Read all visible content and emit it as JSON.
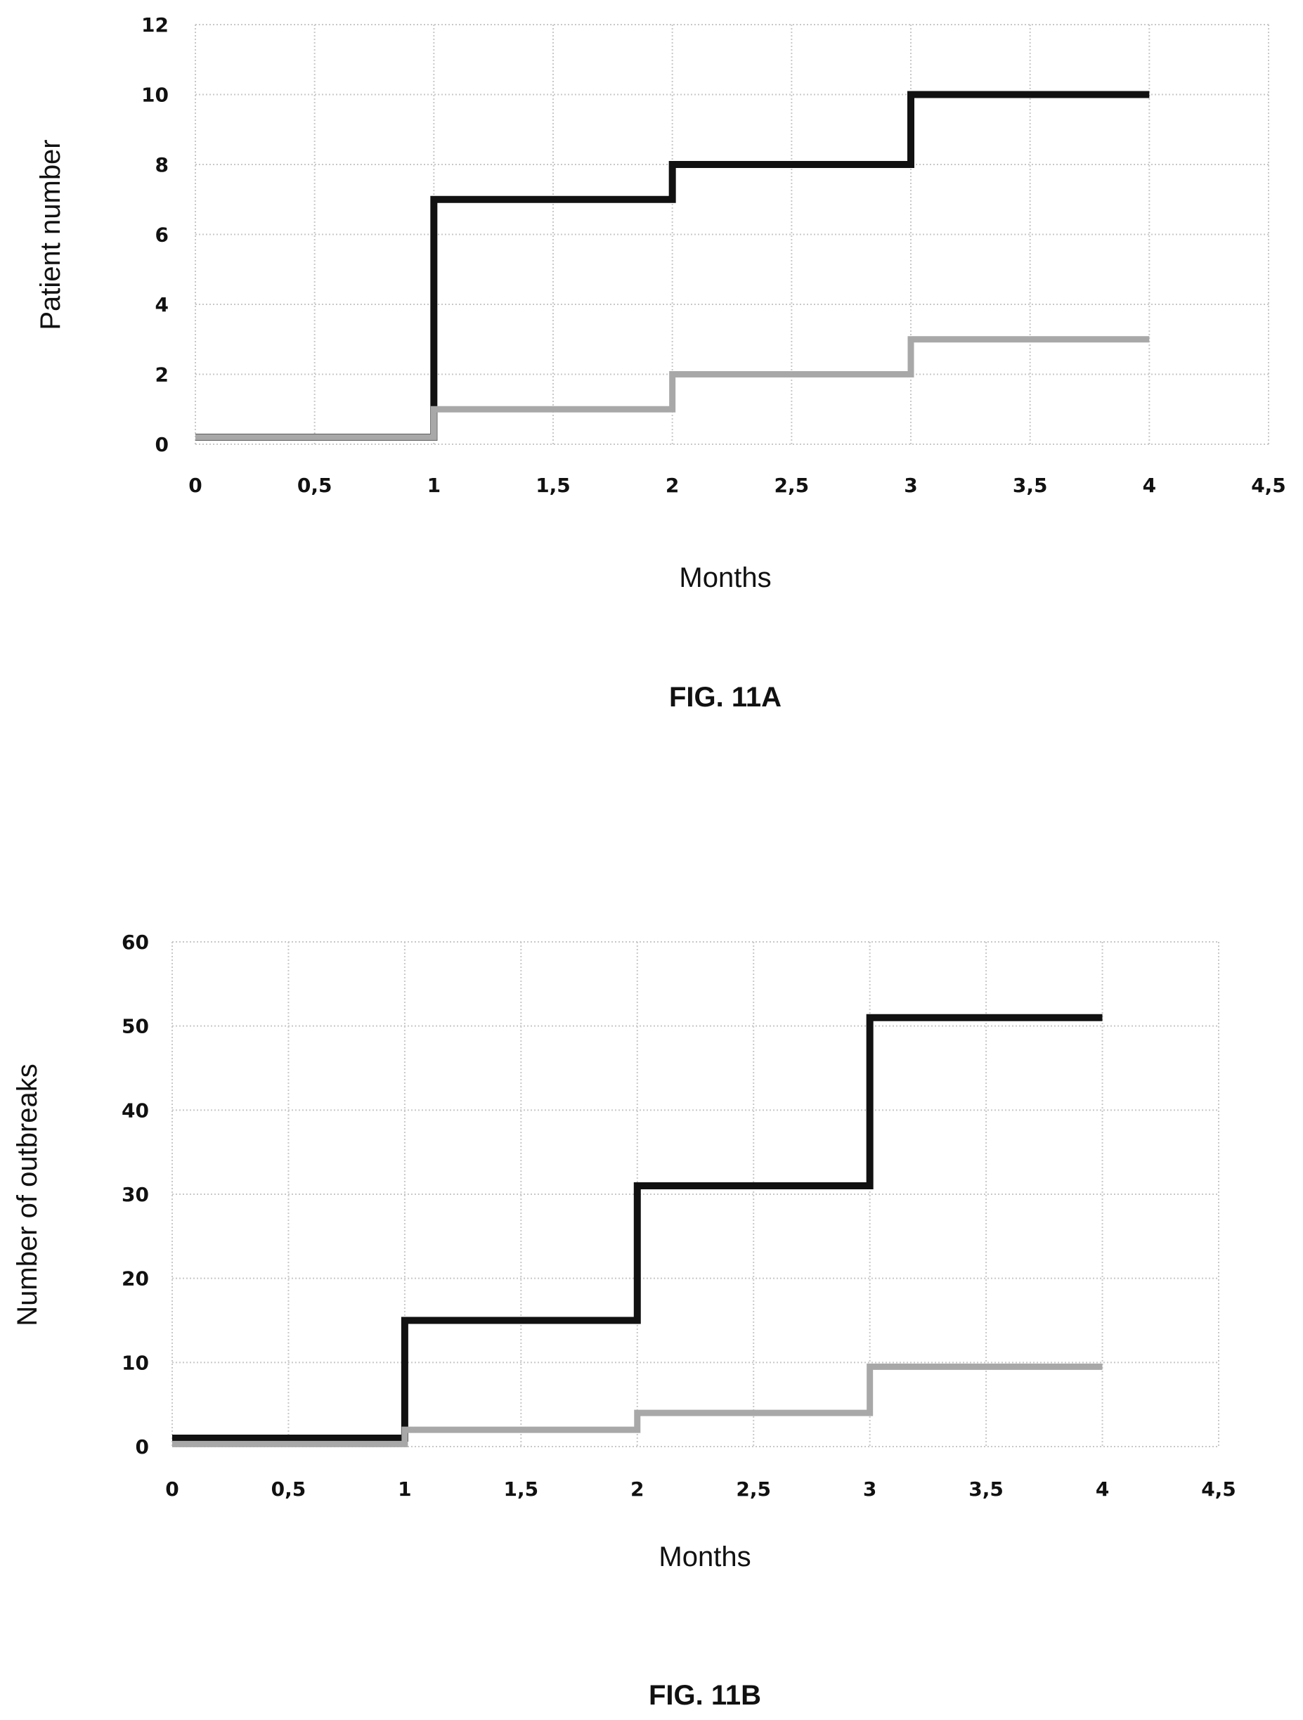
{
  "chart_data": [
    {
      "type": "line",
      "step": true,
      "xlabel": "Months",
      "ylabel": "Patient number",
      "caption": "FIG. 11A",
      "xlim": [
        0,
        4.5
      ],
      "ylim": [
        0,
        12
      ],
      "xticks": [
        "0",
        "0,5",
        "1",
        "1,5",
        "2",
        "2,5",
        "3",
        "3,5",
        "4",
        "4,5"
      ],
      "yticks": [
        "0",
        "2",
        "4",
        "6",
        "8",
        "10",
        "12"
      ],
      "grid": true,
      "series": [
        {
          "color": "#111111",
          "x": [
            0,
            1,
            1,
            2,
            2,
            3,
            3,
            4
          ],
          "y": [
            0.2,
            0.2,
            7,
            7,
            8,
            8,
            10,
            10
          ]
        },
        {
          "color": "#a8a8a8",
          "x": [
            0,
            1,
            1,
            2,
            2,
            3,
            3,
            4
          ],
          "y": [
            0.2,
            0.2,
            1,
            1,
            2,
            2,
            3,
            3
          ]
        }
      ]
    },
    {
      "type": "line",
      "step": true,
      "xlabel": "Months",
      "ylabel": "Number of outbreaks",
      "caption": "FIG. 11B",
      "xlim": [
        0,
        4.5
      ],
      "ylim": [
        0,
        60
      ],
      "xticks": [
        "0",
        "0,5",
        "1",
        "1,5",
        "2",
        "2,5",
        "3",
        "3,5",
        "4",
        "4,5"
      ],
      "yticks": [
        "0",
        "10",
        "20",
        "30",
        "40",
        "50",
        "60"
      ],
      "grid": true,
      "series": [
        {
          "color": "#111111",
          "x": [
            0,
            1,
            1,
            2,
            2,
            3,
            3,
            4
          ],
          "y": [
            1,
            1,
            15,
            15,
            31,
            31,
            51,
            51
          ]
        },
        {
          "color": "#a8a8a8",
          "x": [
            0,
            1,
            1,
            2,
            2,
            3,
            3,
            4
          ],
          "y": [
            0.3,
            0.3,
            2,
            2,
            4,
            4,
            9.5,
            9.5
          ]
        }
      ]
    }
  ]
}
